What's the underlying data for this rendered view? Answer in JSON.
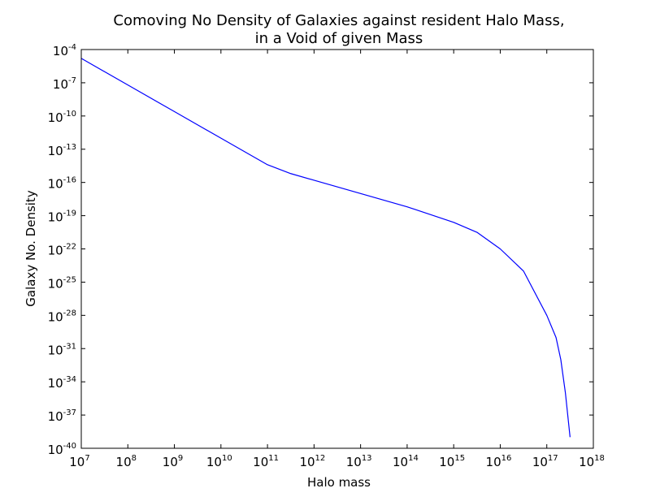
{
  "chart_data": {
    "type": "line",
    "title": [
      "Comoving No Density of Galaxies against resident Halo Mass,",
      "in a Void of given Mass"
    ],
    "xlabel": "Halo mass",
    "ylabel": "Galaxy No. Density",
    "xscale": "log",
    "yscale": "log",
    "xlim": [
      10000000.0,
      1e+18
    ],
    "ylim": [
      1e-40,
      0.0001
    ],
    "grid": false,
    "line_color": "#0000ff",
    "x_ticks": [
      {
        "base": "10",
        "exp": "7"
      },
      {
        "base": "10",
        "exp": "8"
      },
      {
        "base": "10",
        "exp": "9"
      },
      {
        "base": "10",
        "exp": "10"
      },
      {
        "base": "10",
        "exp": "11"
      },
      {
        "base": "10",
        "exp": "12"
      },
      {
        "base": "10",
        "exp": "13"
      },
      {
        "base": "10",
        "exp": "14"
      },
      {
        "base": "10",
        "exp": "15"
      },
      {
        "base": "10",
        "exp": "16"
      },
      {
        "base": "10",
        "exp": "17"
      },
      {
        "base": "10",
        "exp": "18"
      }
    ],
    "y_ticks": [
      {
        "base": "10",
        "exp": "-4"
      },
      {
        "base": "10",
        "exp": "-7"
      },
      {
        "base": "10",
        "exp": "-10"
      },
      {
        "base": "10",
        "exp": "-13"
      },
      {
        "base": "10",
        "exp": "-16"
      },
      {
        "base": "10",
        "exp": "-19"
      },
      {
        "base": "10",
        "exp": "-22"
      },
      {
        "base": "10",
        "exp": "-25"
      },
      {
        "base": "10",
        "exp": "-28"
      },
      {
        "base": "10",
        "exp": "-31"
      },
      {
        "base": "10",
        "exp": "-34"
      },
      {
        "base": "10",
        "exp": "-37"
      },
      {
        "base": "10",
        "exp": "-40"
      }
    ],
    "series": [
      {
        "x": [
          10000000.0,
          100000000.0,
          1000000000.0,
          10000000000.0,
          31600000000.0,
          100000000000.0,
          316000000000.0,
          1000000000000.0,
          10000000000000.0,
          100000000000000.0,
          1000000000000000.0,
          3160000000000000.0,
          1e+16,
          3.16e+16,
          1e+17,
          1.58e+17,
          2e+17,
          2.51e+17,
          3.16e+17
        ],
        "y": [
          1.6e-05,
          6.3e-08,
          2.5e-10,
          1e-12,
          6.3e-14,
          3.98e-15,
          6.3e-16,
          1.58e-16,
          1e-17,
          6.3e-19,
          2.5e-20,
          3.16e-21,
          1e-22,
          1e-24,
          1e-28,
          1e-30,
          1e-32,
          1e-35,
          1e-39
        ]
      }
    ]
  }
}
